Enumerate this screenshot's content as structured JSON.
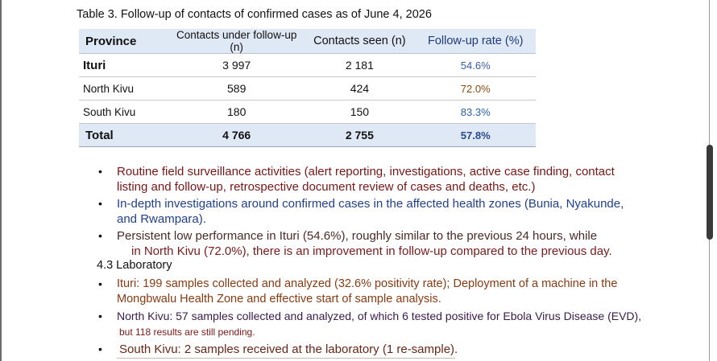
{
  "table": {
    "caption": "Table 3. Follow-up of contacts of confirmed cases as of June 4, 2026",
    "headers": [
      "Province",
      "Contacts under follow-up (n)",
      "Contacts seen (n)",
      "Follow-up rate (%)"
    ],
    "rows": [
      {
        "province": "Ituri",
        "under": "3 997",
        "seen": "2 181",
        "rate": "54.6%",
        "rate_color": "#3a5fa8"
      },
      {
        "province": "North Kivu",
        "under": "589",
        "seen": "424",
        "rate": "72.0%",
        "rate_color": "#8a4a10"
      },
      {
        "province": "South Kivu",
        "under": "180",
        "seen": "150",
        "rate": "83.3%",
        "rate_color": "#2a62a8"
      }
    ],
    "total": {
      "province": "Total",
      "under": "4 766",
      "seen": "2 755",
      "rate": "57.8%",
      "rate_color": "#2a4a8a"
    }
  },
  "bullets1": [
    {
      "line1": "Routine field surveillance activities (alert reporting, investigations, active case finding, contact",
      "line2": "listing and follow-up, retrospective document review of cases and deaths, etc.)",
      "color": "#7a1515"
    },
    {
      "line1": "In-depth investigations around confirmed cases in the affected health zones (Bunia, Nyakunde,",
      "line2": "and Rwampara).",
      "color": "#1f3f8f"
    },
    {
      "line1": "Persistent low performance in Ituri (54.6%), roughly similar to the previous 24 hours, while",
      "line2": "in North Kivu (72.0%), there is an improvement in follow-up compared to the previous day.",
      "color": "#4a2a2a",
      "color2": "#7a1a1a"
    }
  ],
  "lab_heading": "4.3 Laboratory",
  "bullets2": [
    {
      "line1": "Ituri: 199 samples collected and analyzed (32.6% positivity rate); Deployment of a machine in the",
      "line2": "Mongbwalu Health Zone and effective start of sample analysis.",
      "color": "#8a3a10"
    },
    {
      "line1": "North Kivu: 57 samples collected and analyzed, of which 6 tested positive for Ebola Virus Disease (EVD),",
      "line2": "but 118 results are still pending.",
      "color": "#3a1a4a",
      "color2": "#7a1515"
    },
    {
      "line1": "South Kivu: 2 samples received at the laboratory (1 re-sample).",
      "line2": "",
      "color": "#6a2515"
    }
  ],
  "bullet_glyph": "•"
}
